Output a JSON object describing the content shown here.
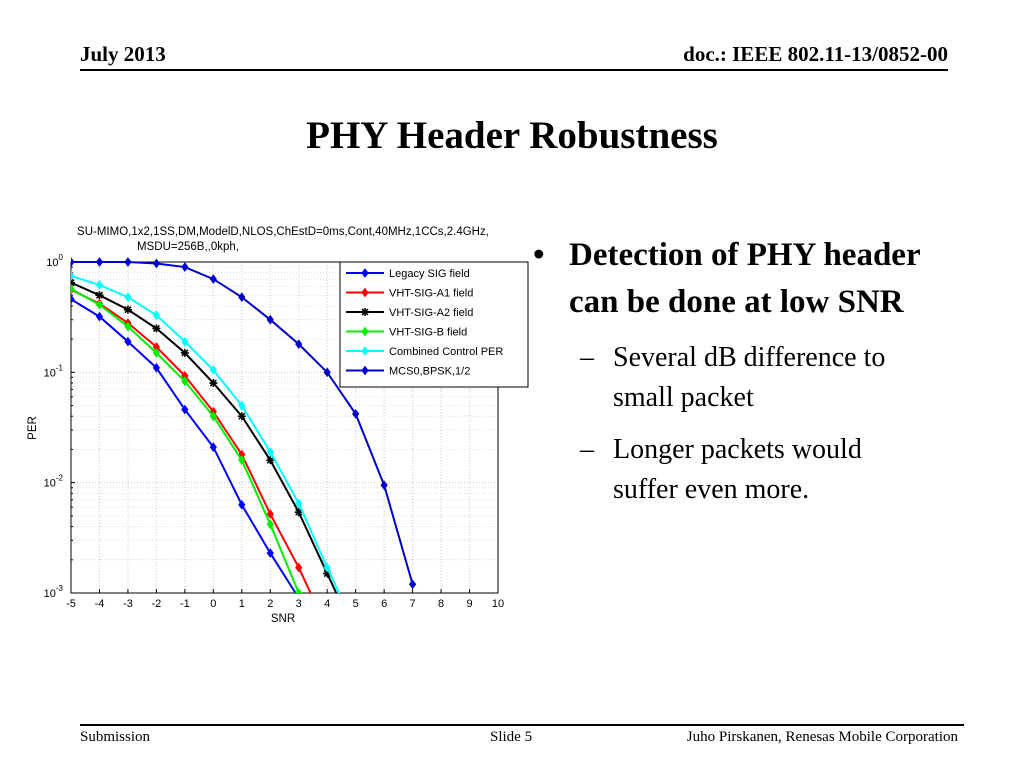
{
  "header": {
    "date": "July 2013",
    "doc": "doc.: IEEE 802.11-13/0852-00"
  },
  "title": "PHY Header Robustness",
  "bullets": [
    {
      "text": "Detection of PHY header can be done at  low SNR",
      "subs": [
        "Several dB difference to small packet",
        "Longer packets would suffer even more."
      ]
    }
  ],
  "footer": {
    "left": "Submission",
    "center": "Slide 5",
    "right": "Juho Pirskanen, Renesas Mobile Corporation"
  },
  "chart_data": {
    "type": "line",
    "title": "SU-MIMO,1x2,1SS,DM,ModelD,NLOS,ChEstD=0ms,Cont,40MHz,1CCs,2.4GHz,",
    "subtitle": "MSDU=256B,,0kph,",
    "xlabel": "SNR",
    "ylabel": "PER",
    "xlim": [
      -5,
      10
    ],
    "ylim": [
      0.001,
      1
    ],
    "yscale": "log",
    "xticks": [
      "-5",
      "-4",
      "-3",
      "-2",
      "-1",
      "0",
      "1",
      "2",
      "3",
      "4",
      "5",
      "6",
      "7",
      "8",
      "9",
      "10"
    ],
    "yticks": [
      {
        "base": "10",
        "exp": "0"
      },
      {
        "base": "10",
        "exp": "-1"
      },
      {
        "base": "10",
        "exp": "-2"
      },
      {
        "base": "10",
        "exp": "-3"
      }
    ],
    "grid": true,
    "legend_position": "top-right",
    "series": [
      {
        "name": "Legacy SIG field",
        "color": "#0000ff",
        "marker": "diamond",
        "x": [
          -5,
          -4,
          -3,
          -2,
          -1,
          0,
          1,
          2,
          3
        ],
        "y": [
          0.46,
          0.32,
          0.19,
          0.11,
          0.046,
          0.021,
          0.0063,
          0.0023,
          0.0009
        ]
      },
      {
        "name": "VHT-SIG-A1 field",
        "color": "#ff0000",
        "marker": "diamond",
        "x": [
          -5,
          -4,
          -3,
          -2,
          -1,
          0,
          1,
          2,
          3,
          3.5
        ],
        "y": [
          0.56,
          0.42,
          0.28,
          0.17,
          0.093,
          0.044,
          0.018,
          0.0052,
          0.0017,
          0.0009
        ]
      },
      {
        "name": "VHT-SIG-A2 field",
        "color": "#000000",
        "marker": "star",
        "x": [
          -5,
          -4,
          -3,
          -2,
          -1,
          0,
          1,
          2,
          3,
          4,
          4.4
        ],
        "y": [
          0.65,
          0.5,
          0.37,
          0.25,
          0.15,
          0.08,
          0.04,
          0.016,
          0.0054,
          0.0015,
          0.0009
        ]
      },
      {
        "name": "VHT-SIG-B field",
        "color": "#00ee00",
        "marker": "diamond",
        "x": [
          -5,
          -4,
          -3,
          -2,
          -1,
          0,
          1,
          2,
          3
        ],
        "y": [
          0.57,
          0.41,
          0.26,
          0.15,
          0.083,
          0.04,
          0.016,
          0.0042,
          0.001
        ]
      },
      {
        "name": "Combined Control PER",
        "color": "#00ffff",
        "marker": "diamond",
        "x": [
          -5,
          -4,
          -3,
          -2,
          -1,
          0,
          1,
          2,
          3,
          4,
          4.5
        ],
        "y": [
          0.75,
          0.62,
          0.48,
          0.33,
          0.19,
          0.105,
          0.05,
          0.019,
          0.0065,
          0.0017,
          0.0009
        ]
      },
      {
        "name": "MCS0,BPSK,1/2",
        "color": "#0000cc",
        "marker": "diamond",
        "x": [
          -5,
          -4,
          -3,
          -2,
          -1,
          0,
          1,
          2,
          3,
          4,
          5,
          6,
          7
        ],
        "y": [
          1.0,
          1.0,
          1.0,
          0.97,
          0.9,
          0.7,
          0.48,
          0.3,
          0.18,
          0.1,
          0.042,
          0.0095,
          0.0012
        ]
      }
    ]
  }
}
